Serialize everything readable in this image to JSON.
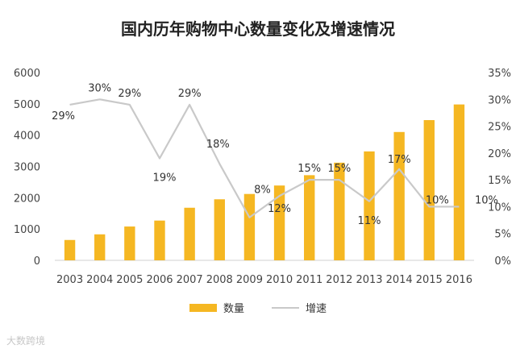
{
  "colors": {
    "bar": "#F5B722",
    "line": "#C9C9C9",
    "text": "#333333"
  },
  "watermark": "大数跨境",
  "chart_data": {
    "type": "bar",
    "title": "国内历年购物中心数量变化及增速情况",
    "categories": [
      "2003",
      "2004",
      "2005",
      "2006",
      "2007",
      "2008",
      "2009",
      "2010",
      "2011",
      "2012",
      "2013",
      "2014",
      "2015",
      "2016"
    ],
    "series": [
      {
        "name": "数量",
        "type": "bar",
        "axis": "left",
        "values": [
          650,
          830,
          1080,
          1270,
          1680,
          1950,
          2120,
          2390,
          2720,
          3120,
          3480,
          4100,
          4480,
          4980
        ]
      },
      {
        "name": "增速",
        "type": "line",
        "axis": "right",
        "values": [
          29,
          30,
          29,
          19,
          29,
          18,
          8,
          12,
          15,
          15,
          11,
          17,
          10,
          10
        ],
        "labels": [
          "29%",
          "30%",
          "29%",
          "19%",
          "29%",
          "18%",
          "8%",
          "12%",
          "15%",
          "15%",
          "11%",
          "17%",
          "10%",
          "10%"
        ]
      }
    ],
    "y_left": {
      "lim": [
        0,
        6000
      ],
      "ticks": [
        "0",
        "1000",
        "2000",
        "3000",
        "4000",
        "5000",
        "6000"
      ]
    },
    "y_right": {
      "lim": [
        0,
        35
      ],
      "ticks": [
        "0%",
        "5%",
        "10%",
        "15%",
        "20%",
        "25%",
        "30%",
        "35%"
      ]
    },
    "legend": {
      "position": "bottom",
      "items": [
        "数量",
        "增速"
      ]
    },
    "grid": false
  }
}
